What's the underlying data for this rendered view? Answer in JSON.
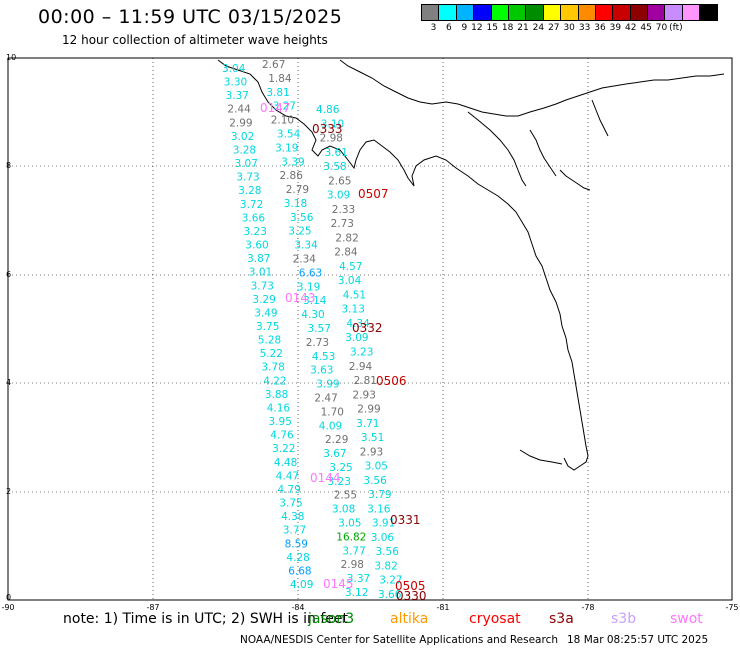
{
  "header": {
    "title": "00:00 – 11:59 UTC 03/15/2025",
    "subtitle": "12 hour collection of altimeter wave heights"
  },
  "legend": {
    "swatches": [
      {
        "value": "3",
        "color": "#808080"
      },
      {
        "value": "6",
        "color": "#00ffff"
      },
      {
        "value": "9",
        "color": "#00b4ff"
      },
      {
        "value": "12",
        "color": "#0000ff"
      },
      {
        "value": "15",
        "color": "#00ff00"
      },
      {
        "value": "18",
        "color": "#00c800"
      },
      {
        "value": "21",
        "color": "#008c00"
      },
      {
        "value": "24",
        "color": "#ffff00"
      },
      {
        "value": "27",
        "color": "#ffc800"
      },
      {
        "value": "30",
        "color": "#ff8c00"
      },
      {
        "value": "33",
        "color": "#ff0000"
      },
      {
        "value": "36",
        "color": "#c80000"
      },
      {
        "value": "39",
        "color": "#8c0000"
      },
      {
        "value": "42",
        "color": "#a000a0"
      },
      {
        "value": "45",
        "color": "#c88cff"
      },
      {
        "value": "70",
        "color": "#ff96ff"
      },
      {
        "value": "",
        "color": "#000000"
      }
    ],
    "unit": "(ft)"
  },
  "axes": {
    "x_ticks": [
      "-90",
      "-87",
      "-84",
      "-81",
      "-78",
      "-75"
    ],
    "y_ticks": [
      "10",
      "8",
      "6",
      "4",
      "2",
      "0"
    ]
  },
  "chart_data": {
    "type": "scatter",
    "x_range": [
      -90,
      -75
    ],
    "y_range": [
      0,
      10
    ],
    "passes": [
      {
        "label": "0147",
        "color": "#ff77ff"
      },
      {
        "label": "0333",
        "color": "#8b0000"
      },
      {
        "label": "0507",
        "color": "#cc0000"
      },
      {
        "label": "0143",
        "color": "#ff77ff"
      },
      {
        "label": "0332",
        "color": "#8b0000"
      },
      {
        "label": "0506",
        "color": "#cc0000"
      },
      {
        "label": "0144",
        "color": "#ff77ff"
      },
      {
        "label": "0331",
        "color": "#8b0000"
      },
      {
        "label": "0145",
        "color": "#ff77ff"
      },
      {
        "label": "0505",
        "color": "#cc0000"
      },
      {
        "label": "0330",
        "color": "#8b0000"
      }
    ],
    "track_a": [
      "3.04",
      "3.30",
      "3.37",
      "2.44",
      "2.99",
      "3.02",
      "3.28",
      "3.07",
      "3.73",
      "3.28",
      "3.72",
      "3.66",
      "3.23",
      "3.60",
      "3.87",
      "3.01",
      "3.73",
      "3.29",
      "3.49",
      "3.75",
      "5.28",
      "5.22",
      "3.78",
      "4.22",
      "3.88",
      "4.16",
      "3.95",
      "4.76",
      "3.22",
      "4.48",
      "4.47",
      "4.79",
      "3.75",
      "4.38",
      "3.77",
      "8.59",
      "4.28",
      "6.68",
      "4.09"
    ],
    "track_b": [
      "2.67",
      "1.84",
      "3.81",
      "3.27",
      "2.10",
      "3.54",
      "3.19",
      "3.39",
      "2.86",
      "2.79",
      "3.18",
      "3.56",
      "3.25",
      "3.34",
      "2.34",
      "6.63",
      "3.19",
      "3.14",
      "4.30",
      "3.57",
      "2.73",
      "4.53",
      "3.63",
      "3.99",
      "2.47",
      "1.70",
      "4.09",
      "2.29",
      "3.67",
      "3.25",
      "3.23",
      "2.55",
      "3.08",
      "3.05",
      "16.82",
      "3.77",
      "2.98",
      "3.37",
      "3.12"
    ],
    "track_c": [
      "4.86",
      "3.10",
      "2.98",
      "3.61",
      "3.58",
      "2.65",
      "3.09",
      "2.33",
      "2.73",
      "2.82",
      "2.84",
      "4.57",
      "3.04",
      "4.51",
      "3.13",
      "4.34",
      "3.09",
      "3.23",
      "2.94",
      "2.81",
      "2.93",
      "2.99",
      "3.71",
      "3.51",
      "2.93",
      "3.05",
      "3.56",
      "3.79",
      "3.16",
      "3.91",
      "3.06",
      "3.56",
      "3.82",
      "3.27",
      "3.66"
    ]
  },
  "footer": {
    "note": "note: 1) Time is in UTC; 2) SWH is in feet",
    "satellites": [
      {
        "name": "jason3",
        "color": "#008800"
      },
      {
        "name": "altika",
        "color": "#ff9900"
      },
      {
        "name": "cryosat",
        "color": "#ff0000"
      },
      {
        "name": "s3a",
        "color": "#8b0000"
      },
      {
        "name": "s3b",
        "color": "#c8a0ff"
      },
      {
        "name": "swot",
        "color": "#ff77ff"
      }
    ],
    "credit": "NOAA/NESDIS Center for Satellite Applications and Research",
    "timestamp": "18 Mar 08:25:57 UTC 2025"
  }
}
